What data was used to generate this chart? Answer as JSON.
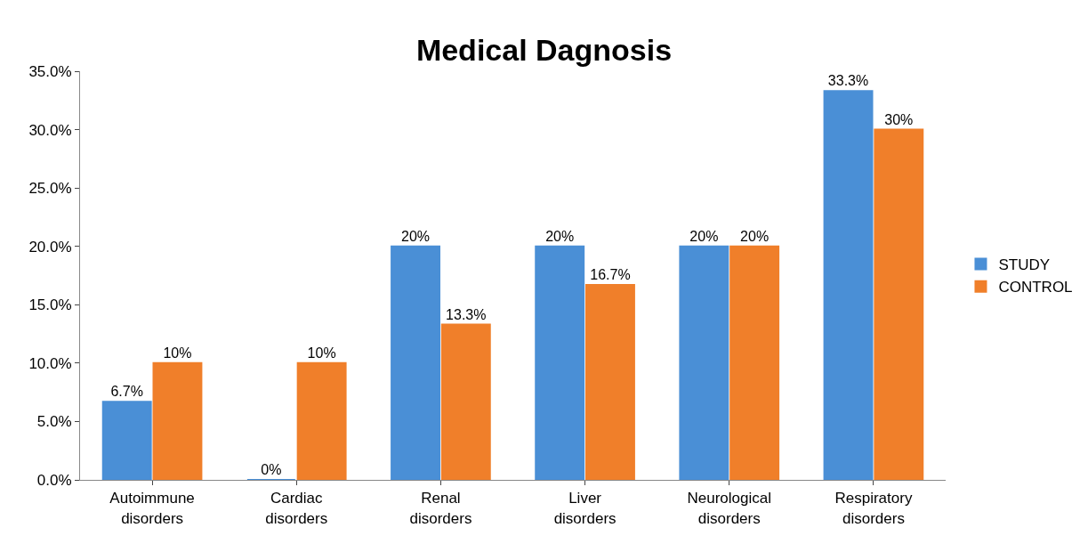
{
  "chart_data": {
    "type": "bar",
    "title": "Medical Dagnosis",
    "categories": [
      "Autoimmune disorders",
      "Cardiac disorders",
      "Renal disorders",
      "Liver disorders",
      "Neurological disorders",
      "Respiratory disorders"
    ],
    "series": [
      {
        "name": "STUDY",
        "color": "#4a8fd6",
        "values": [
          6.7,
          0,
          20,
          20,
          20,
          33.3
        ],
        "value_labels": [
          "6.7%",
          "0%",
          "20%",
          "20%",
          "20%",
          "33.3%"
        ]
      },
      {
        "name": "CONTROL",
        "color": "#f07f2a",
        "values": [
          10,
          10,
          13.3,
          16.7,
          20,
          30
        ],
        "value_labels": [
          "10%",
          "10%",
          "13.3%",
          "16.7%",
          "20%",
          "30%"
        ]
      }
    ],
    "ylim": [
      0,
      35
    ],
    "yticks": [
      {
        "value": 0,
        "label": "0.0%"
      },
      {
        "value": 5,
        "label": "5.0%"
      },
      {
        "value": 10,
        "label": "10.0%"
      },
      {
        "value": 15,
        "label": "15.0%"
      },
      {
        "value": 20,
        "label": "20.0%"
      },
      {
        "value": 25,
        "label": "25.0%"
      },
      {
        "value": 30,
        "label": "30.0%"
      },
      {
        "value": 35,
        "label": "35.0%"
      }
    ],
    "legend": "right"
  }
}
